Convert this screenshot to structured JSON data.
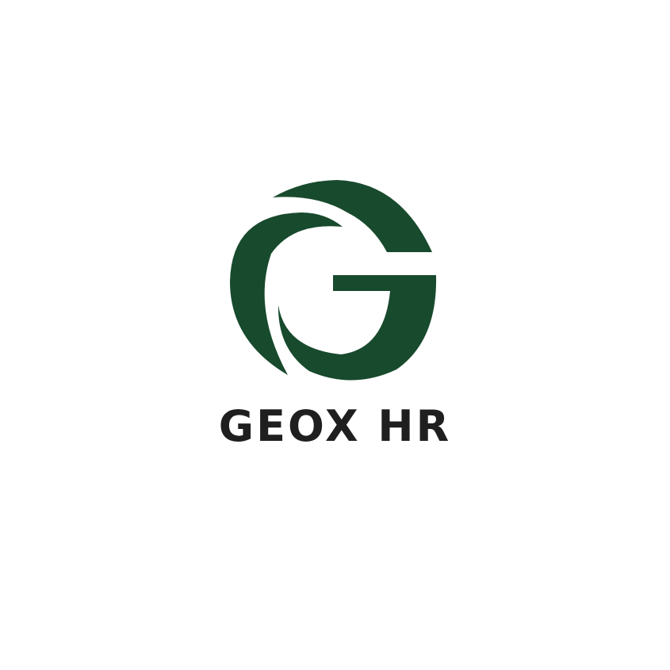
{
  "brand": {
    "name": "GEOX HR",
    "primary_color": "#184a2d",
    "text_color": "#1f1f1f"
  },
  "logo": {
    "icon": "stylized-g-icon"
  }
}
